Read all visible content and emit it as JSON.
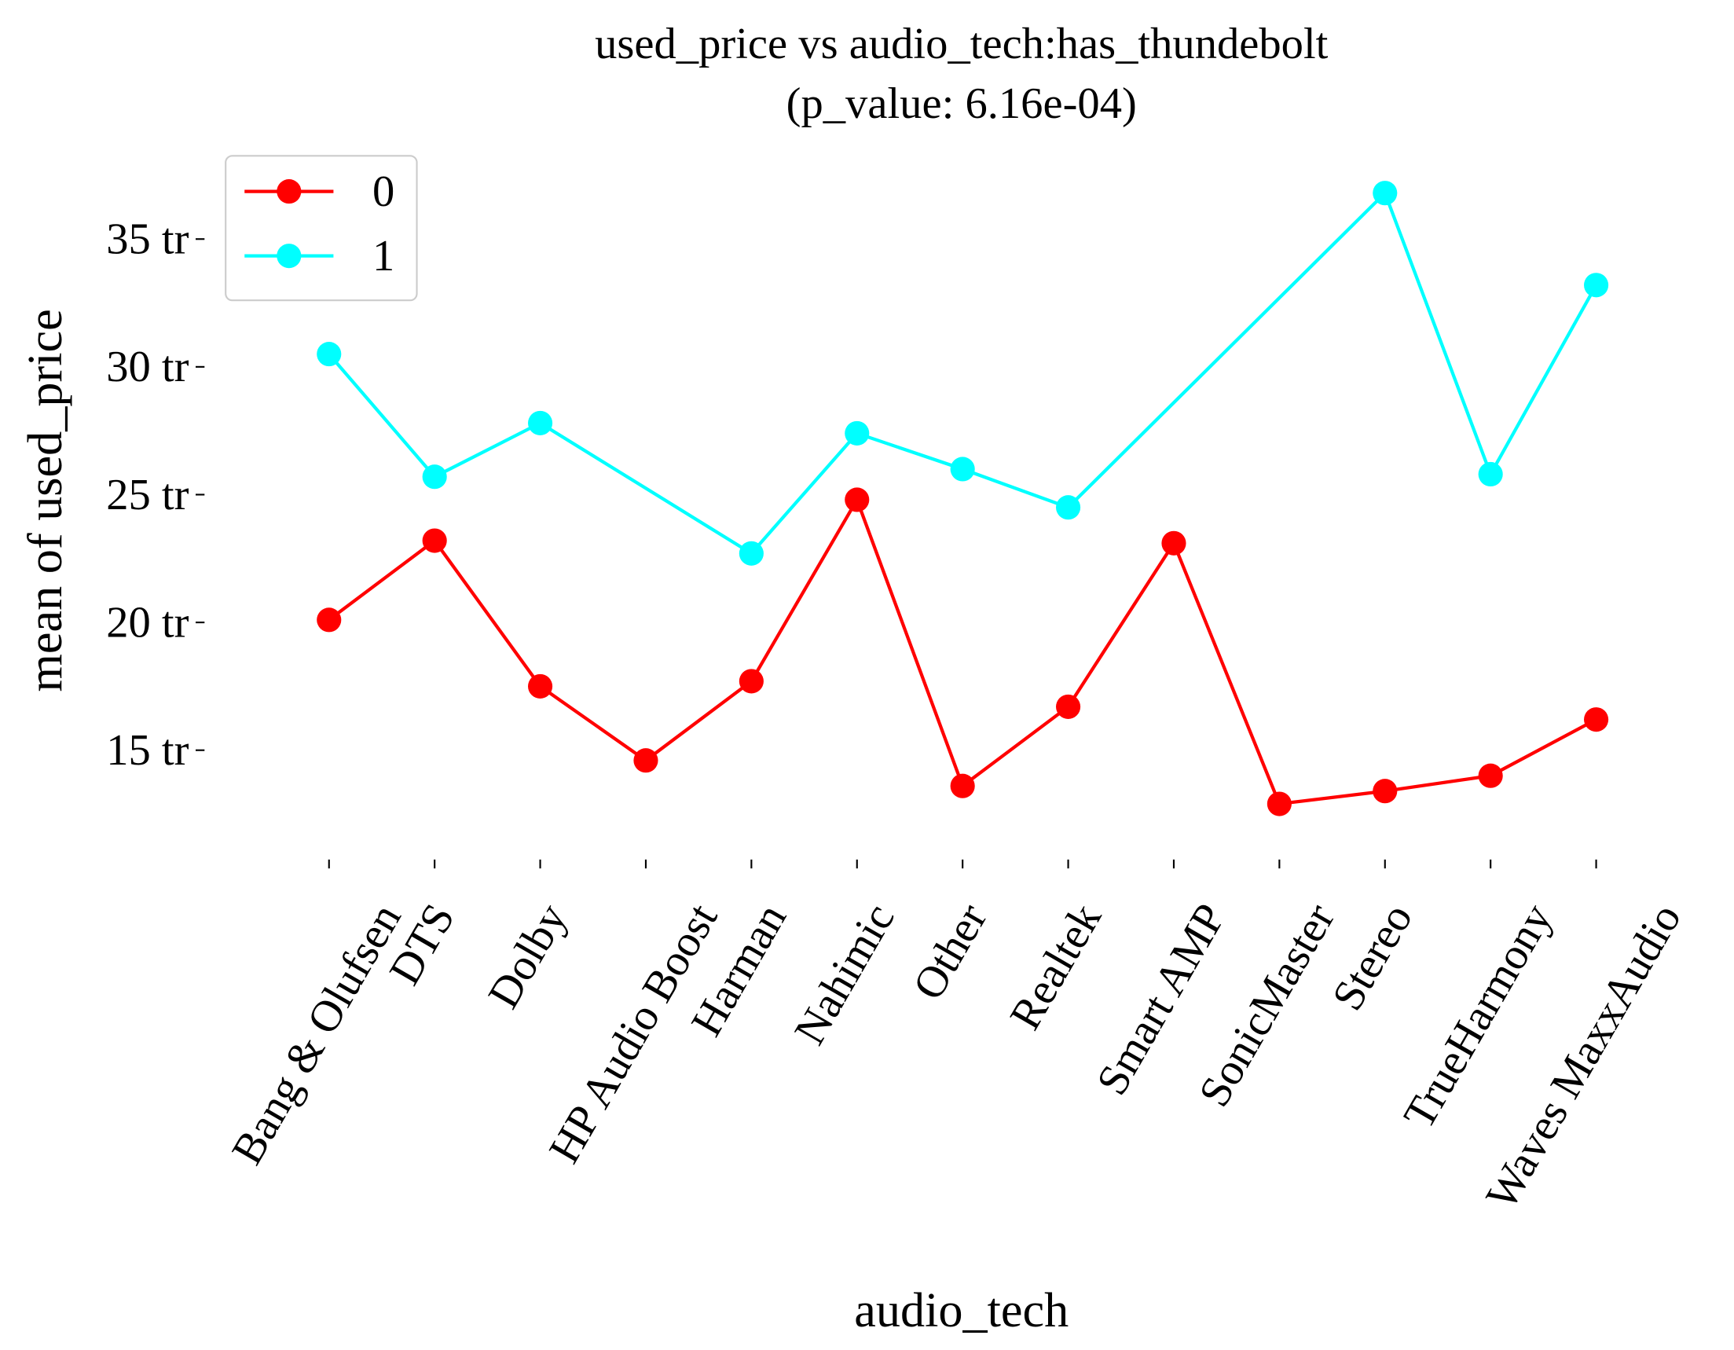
{
  "chart_data": {
    "type": "line",
    "title": "used_price vs audio_tech:has_thundebolt",
    "subtitle": "(p_value: 6.16e-04)",
    "xlabel": "audio_tech",
    "ylabel": "mean of used_price",
    "categories": [
      "Bang & Olufsen",
      "DTS",
      "Dolby",
      "HP Audio Boost",
      "Harman",
      "Nahimic",
      "Other",
      "Realtek",
      "Smart AMP",
      "SonicMaster",
      "Stereo",
      "TrueHarmony",
      "Waves MaxxAudio"
    ],
    "series": [
      {
        "name": "0",
        "color": "#ff0000",
        "values": [
          20.1,
          23.2,
          17.5,
          14.6,
          17.7,
          24.8,
          13.6,
          16.7,
          23.1,
          12.9,
          13.4,
          14.0,
          16.2
        ]
      },
      {
        "name": "1",
        "color": "#00ffff",
        "values": [
          30.5,
          25.7,
          27.8,
          null,
          22.7,
          27.4,
          26.0,
          24.5,
          null,
          null,
          36.8,
          25.8,
          33.2
        ]
      }
    ],
    "ylim": [
      10.2,
      38.3
    ],
    "yticks": [
      {
        "value": 15,
        "label": "15 tr"
      },
      {
        "value": 20,
        "label": "20 tr"
      },
      {
        "value": 25,
        "label": "25 tr"
      },
      {
        "value": 30,
        "label": "30 tr"
      },
      {
        "value": 35,
        "label": "35 tr"
      }
    ],
    "legend": "upper left",
    "grid": false
  }
}
